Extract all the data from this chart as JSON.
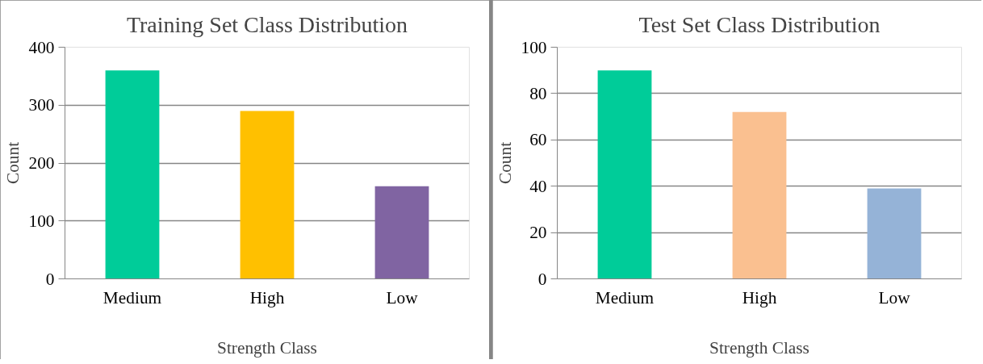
{
  "chart_data": [
    {
      "type": "bar",
      "title": "Training Set Class Distribution",
      "xlabel": "Strength Class",
      "ylabel": "Count",
      "categories": [
        "Medium",
        "High",
        "Low"
      ],
      "values": [
        360,
        290,
        160
      ],
      "colors": [
        "#00cc99",
        "#ffc000",
        "#8064a2"
      ],
      "ylim": [
        0,
        400
      ],
      "yticks": [
        0,
        100,
        200,
        300,
        400
      ],
      "grid": "y",
      "legend": false
    },
    {
      "type": "bar",
      "title": "Test Set Class Distribution",
      "xlabel": "Strength Class",
      "ylabel": "Count",
      "categories": [
        "Medium",
        "High",
        "Low"
      ],
      "values": [
        90,
        72,
        39
      ],
      "colors": [
        "#00cc99",
        "#fac090",
        "#95b3d7"
      ],
      "ylim": [
        0,
        100
      ],
      "yticks": [
        0,
        20,
        40,
        60,
        80,
        100
      ],
      "grid": "y",
      "legend": false
    }
  ]
}
